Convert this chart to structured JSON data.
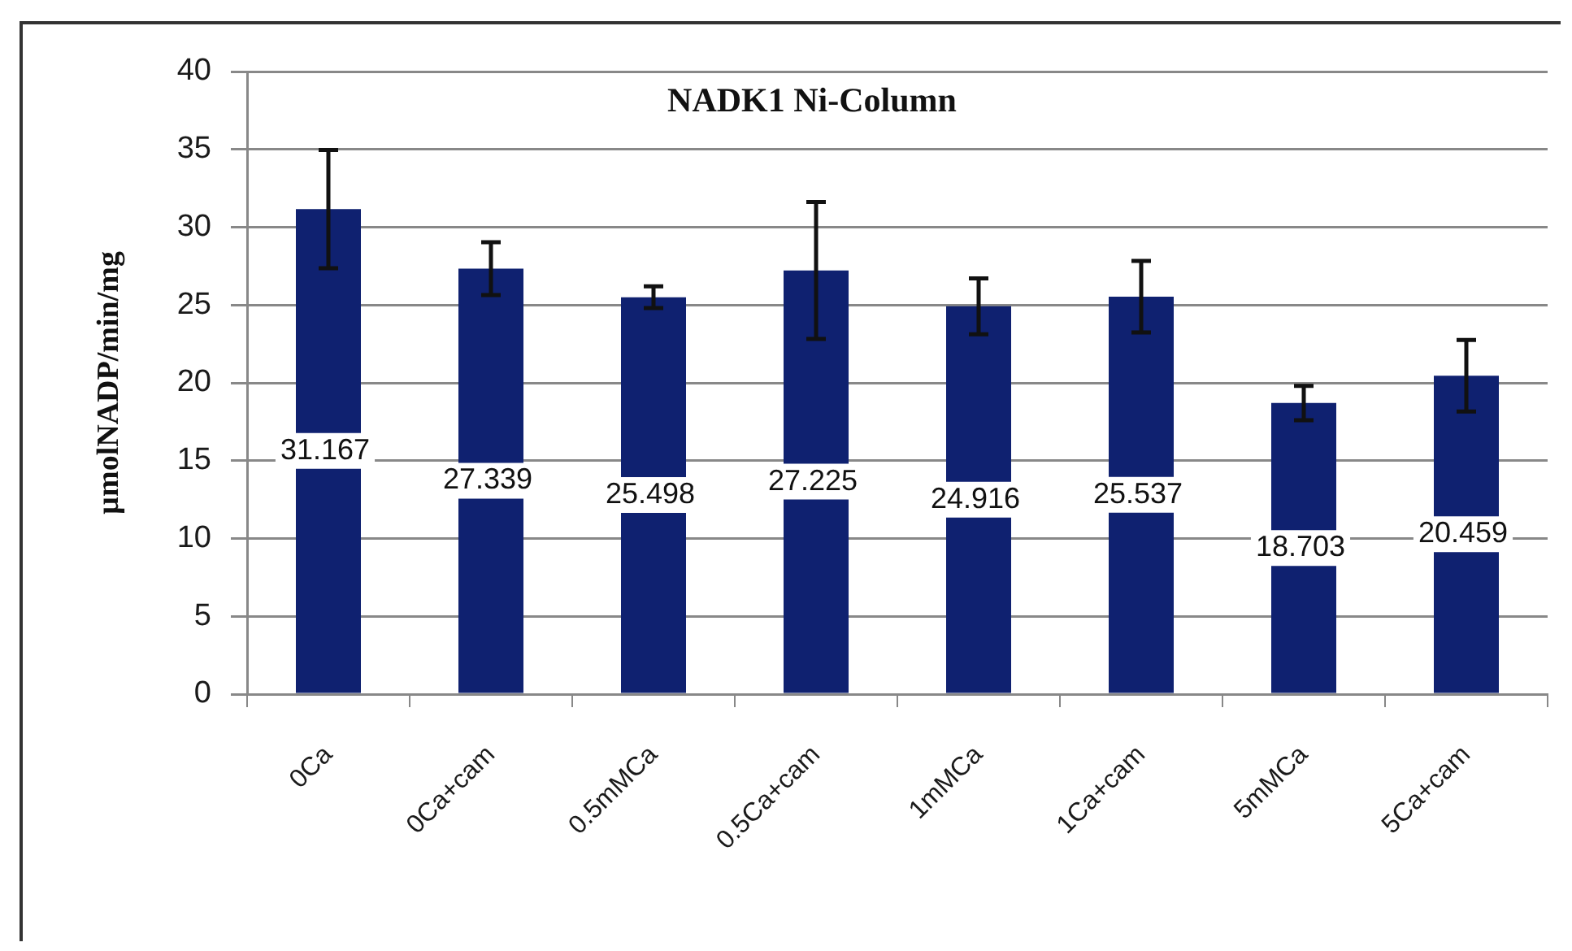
{
  "chart_data": {
    "type": "bar",
    "title": "NADK1 Ni-Column",
    "ylabel": "µmolNADP/min/mg",
    "categories": [
      "0Ca",
      "0Ca+cam",
      "0.5mMCa",
      "0.5Ca+cam",
      "1mMCa",
      "1Ca+cam",
      "5mMCa",
      "5Ca+cam"
    ],
    "values": [
      31.167,
      27.339,
      25.498,
      27.225,
      24.916,
      25.537,
      18.703,
      20.459
    ],
    "errors": [
      3.8,
      1.7,
      0.7,
      4.4,
      1.8,
      2.3,
      1.1,
      2.3
    ],
    "color": "#0f2170",
    "ylim": [
      0,
      40
    ],
    "yticks": [
      0,
      5,
      10,
      15,
      20,
      25,
      30,
      35,
      40
    ],
    "grid": "y",
    "data_labels": true
  }
}
